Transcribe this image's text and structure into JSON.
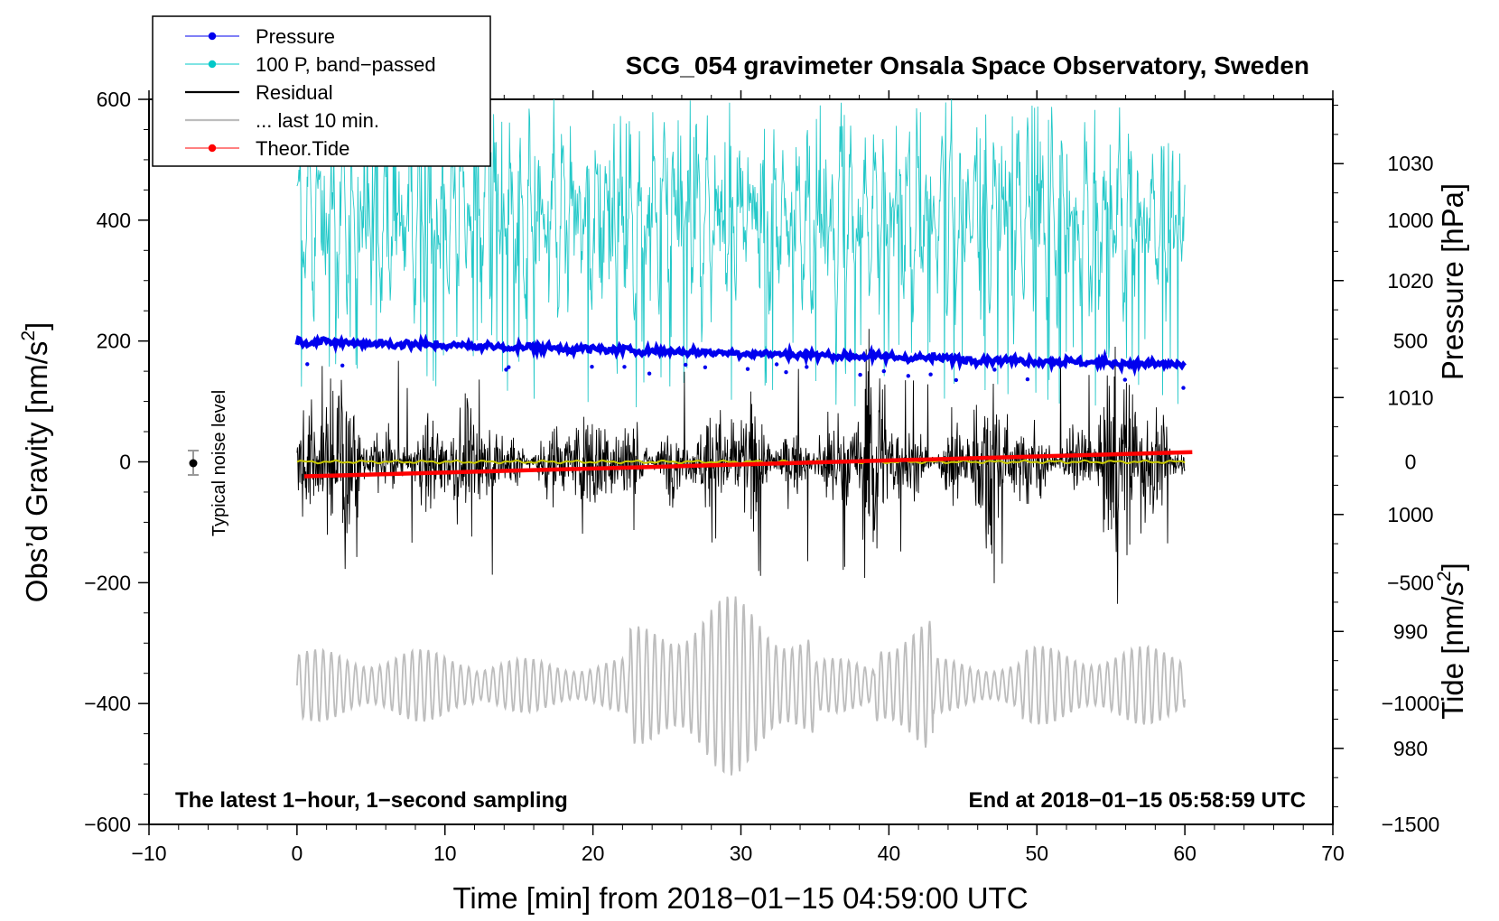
{
  "chart_data": {
    "type": "line",
    "title": "SCG_054 gravimeter Onsala Space Observatory, Sweden",
    "xlabel": "Time [min] from 2018−01−15 04:59:00 UTC",
    "ylabel_left": "Obs’d Gravity [nm/s",
    "ylabel_left_sup": "2",
    "ylabel_left_close": "]",
    "ylabel_right_pressure": "Pressure [hPa]",
    "ylabel_right_tide": "Tide [nm/s",
    "ylabel_right_tide_sup": "2",
    "ylabel_right_tide_close": "]",
    "xlim": [
      -10,
      70
    ],
    "ylim_left": [
      -600,
      600
    ],
    "pressure_axis": {
      "min": 973.5,
      "max": 1035.5,
      "ticks": [
        980,
        990,
        1000,
        1010,
        1020,
        1030
      ]
    },
    "tide_axis": {
      "min": -1500,
      "max": 1500,
      "ticks": [
        -1500,
        -1000,
        -500,
        0,
        500,
        1000
      ]
    },
    "x_ticks": [
      -10,
      0,
      10,
      20,
      30,
      40,
      50,
      60,
      70
    ],
    "x_tick_labels": [
      "−10",
      "0",
      "10",
      "20",
      "30",
      "40",
      "50",
      "60",
      "70"
    ],
    "y_ticks": [
      -600,
      -400,
      -200,
      0,
      200,
      400,
      600
    ],
    "y_tick_labels": [
      "−600",
      "−400",
      "−200",
      "0",
      "200",
      "400",
      "600"
    ],
    "pressure_tick_labels": [
      "980",
      "990",
      "1000",
      "1010",
      "1020",
      "1030"
    ],
    "tide_tick_labels": [
      "−1500",
      "−1000",
      "−500",
      "0",
      "500",
      "1000"
    ],
    "legend": [
      {
        "label": "Pressure",
        "color": "#0000ee",
        "style": "line-dot"
      },
      {
        "label": "100 P, band−passed",
        "color": "#00c8c8",
        "style": "line-dot"
      },
      {
        "label": "Residual",
        "color": "#000000",
        "style": "line"
      },
      {
        "label": "... last 10 min.",
        "color": "#bdbdbd",
        "style": "line"
      },
      {
        "label": "Theor.Tide",
        "color": "#ff0000",
        "style": "line-dot"
      }
    ],
    "series": [
      {
        "name": "Pressure",
        "axis": "pressure",
        "color": "#0000ee",
        "x_range": [
          0,
          60
        ],
        "start_value": 1014.8,
        "end_value": 1012.8,
        "approx_pressure_hpa": 1013.8
      },
      {
        "name": "100 P, band−passed",
        "axis": "left",
        "color": "#00c8c8",
        "x_range": [
          0,
          60
        ],
        "approx_range": [
          60,
          600
        ]
      },
      {
        "name": "Residual",
        "axis": "left",
        "color": "#000000",
        "x_range": [
          0,
          60
        ],
        "approx_range": [
          -235,
          220
        ]
      },
      {
        "name": "Residual smoothed",
        "axis": "left",
        "color": "#c8c800",
        "x_range": [
          0,
          60
        ],
        "approx_value": 0
      },
      {
        "name": "... last 10 min.",
        "axis": "left",
        "color": "#bdbdbd",
        "x_range": [
          0,
          60
        ],
        "approx_range": [
          -540,
          -200
        ]
      },
      {
        "name": "Theor.Tide",
        "axis": "tide",
        "color": "#ff0000",
        "x_range": [
          0.5,
          60.5
        ],
        "start_value": -60,
        "end_value": 40
      }
    ],
    "noise_marker": {
      "label": "Typical noise level",
      "x": -7,
      "y": 0,
      "error": 20
    },
    "annotations": {
      "bottom_left": "The latest 1−hour, 1−second sampling",
      "bottom_right": "End at 2018−01−15 05:58:59 UTC"
    }
  }
}
